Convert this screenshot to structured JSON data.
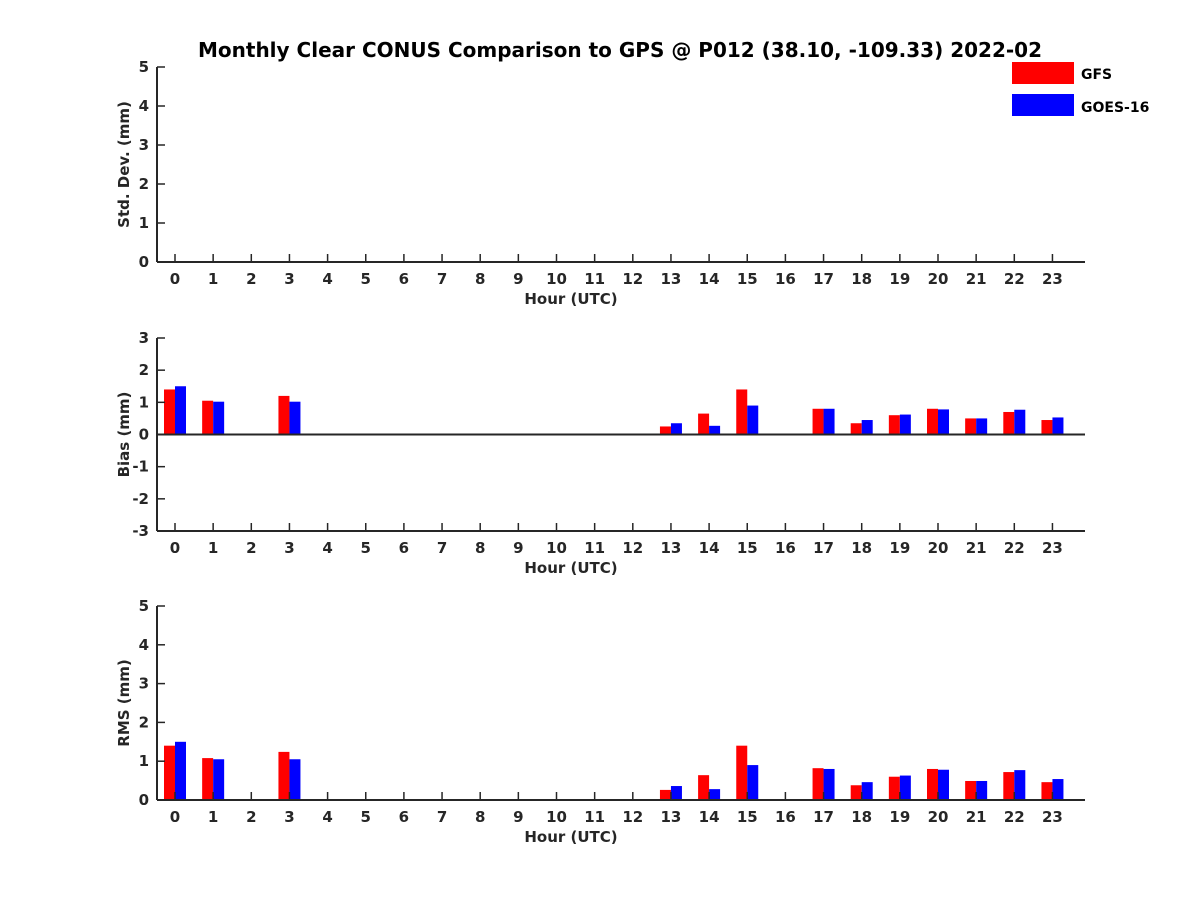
{
  "title": "Monthly Clear CONUS Comparison to GPS @ P012 (38.10, -109.33) 2022-02",
  "colors": {
    "gfs": "#ff0000",
    "goes": "#0000ff",
    "axis": "#262626"
  },
  "legend": [
    {
      "name": "GFS",
      "color": "#ff0000"
    },
    {
      "name": "GOES-16",
      "color": "#0000ff"
    }
  ],
  "chart_data": [
    {
      "type": "bar",
      "xlabel": "Hour (UTC)",
      "ylabel": "Std. Dev. (mm)",
      "ylim": [
        0,
        5
      ],
      "yticks": [
        0,
        1,
        2,
        3,
        4,
        5
      ],
      "categories": [
        "0",
        "1",
        "2",
        "3",
        "4",
        "5",
        "6",
        "7",
        "8",
        "9",
        "10",
        "11",
        "12",
        "13",
        "14",
        "15",
        "16",
        "17",
        "18",
        "19",
        "20",
        "21",
        "22",
        "23"
      ],
      "series": [
        {
          "name": "GFS",
          "values": [
            null,
            null,
            null,
            null,
            null,
            null,
            null,
            null,
            null,
            null,
            null,
            null,
            null,
            null,
            null,
            null,
            null,
            null,
            null,
            null,
            null,
            null,
            null,
            null
          ]
        },
        {
          "name": "GOES-16",
          "values": [
            null,
            null,
            null,
            null,
            null,
            null,
            null,
            null,
            null,
            null,
            null,
            null,
            null,
            null,
            null,
            null,
            null,
            null,
            null,
            null,
            null,
            null,
            null,
            null
          ]
        }
      ]
    },
    {
      "type": "bar",
      "xlabel": "Hour (UTC)",
      "ylabel": "Bias (mm)",
      "ylim": [
        -3,
        3
      ],
      "yticks": [
        -3,
        -2,
        -1,
        0,
        1,
        2,
        3
      ],
      "categories": [
        "0",
        "1",
        "2",
        "3",
        "4",
        "5",
        "6",
        "7",
        "8",
        "9",
        "10",
        "11",
        "12",
        "13",
        "14",
        "15",
        "16",
        "17",
        "18",
        "19",
        "20",
        "21",
        "22",
        "23"
      ],
      "series": [
        {
          "name": "GFS",
          "values": [
            1.4,
            1.05,
            null,
            1.2,
            null,
            null,
            null,
            null,
            null,
            null,
            null,
            null,
            null,
            0.25,
            0.65,
            1.4,
            null,
            0.8,
            0.35,
            0.6,
            0.8,
            0.5,
            0.7,
            0.45
          ]
        },
        {
          "name": "GOES-16",
          "values": [
            1.5,
            1.02,
            null,
            1.02,
            null,
            null,
            null,
            null,
            null,
            null,
            null,
            null,
            null,
            0.35,
            0.27,
            0.9,
            null,
            0.8,
            0.45,
            0.62,
            0.78,
            0.5,
            0.77,
            0.53
          ]
        }
      ]
    },
    {
      "type": "bar",
      "xlabel": "Hour (UTC)",
      "ylabel": "RMS (mm)",
      "ylim": [
        0,
        5
      ],
      "yticks": [
        0,
        1,
        2,
        3,
        4,
        5
      ],
      "categories": [
        "0",
        "1",
        "2",
        "3",
        "4",
        "5",
        "6",
        "7",
        "8",
        "9",
        "10",
        "11",
        "12",
        "13",
        "14",
        "15",
        "16",
        "17",
        "18",
        "19",
        "20",
        "21",
        "22",
        "23"
      ],
      "series": [
        {
          "name": "GFS",
          "values": [
            1.4,
            1.08,
            null,
            1.24,
            null,
            null,
            null,
            null,
            null,
            null,
            null,
            null,
            null,
            0.26,
            0.64,
            1.4,
            null,
            0.82,
            0.38,
            0.6,
            0.8,
            0.49,
            0.72,
            0.46
          ]
        },
        {
          "name": "GOES-16",
          "values": [
            1.5,
            1.05,
            null,
            1.05,
            null,
            null,
            null,
            null,
            null,
            null,
            null,
            null,
            null,
            0.36,
            0.28,
            0.9,
            null,
            0.8,
            0.46,
            0.63,
            0.78,
            0.49,
            0.77,
            0.54
          ]
        }
      ]
    }
  ]
}
